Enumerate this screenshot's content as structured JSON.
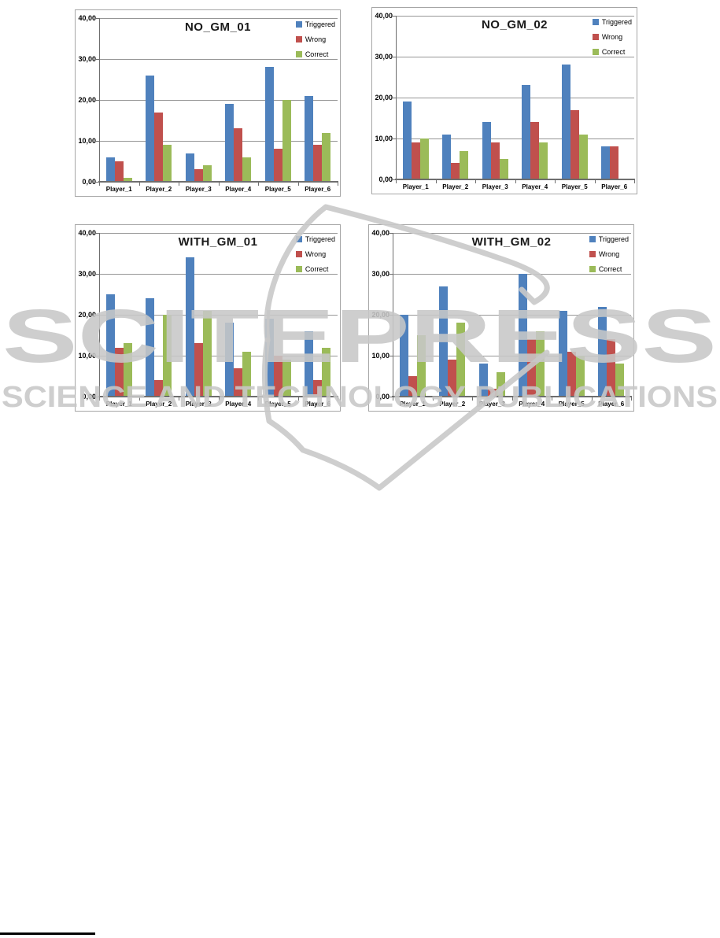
{
  "watermark": {
    "line1": "SCITEPRESS",
    "line2": "SCIENCE AND TECHNOLOGY PUBLICATIONS"
  },
  "colors": {
    "triggered": "#4F81BD",
    "wrong": "#C0504D",
    "correct": "#9BBB59",
    "gridline": "#969696",
    "axis": "#6E6E6E",
    "chart_border": "#A6A6A6",
    "watermark": "#C8C8C8"
  },
  "chart_data": [
    {
      "type": "bar",
      "title": "NO_GM_01",
      "categories": [
        "Player_1",
        "Player_2",
        "Player_3",
        "Player_4",
        "Player_5",
        "Player_6"
      ],
      "series": [
        {
          "name": "Triggered",
          "values": [
            6,
            26,
            7,
            19,
            28,
            21
          ]
        },
        {
          "name": "Wrong",
          "values": [
            5,
            17,
            3,
            13,
            8,
            9
          ]
        },
        {
          "name": "Correct",
          "values": [
            1,
            9,
            4,
            6,
            20,
            12
          ]
        }
      ],
      "ylim": [
        0,
        40
      ],
      "ytick_labels": [
        "0,00",
        "10,00",
        "20,00",
        "30,00",
        "40,00"
      ],
      "grid": true,
      "legend_position": "top-right"
    },
    {
      "type": "bar",
      "title": "NO_GM_02",
      "categories": [
        "Player_1",
        "Player_2",
        "Player_3",
        "Player_4",
        "Player_5",
        "Player_6"
      ],
      "series": [
        {
          "name": "Triggered",
          "values": [
            19,
            11,
            14,
            23,
            28,
            8
          ]
        },
        {
          "name": "Wrong",
          "values": [
            9,
            4,
            9,
            14,
            17,
            8
          ]
        },
        {
          "name": "Correct",
          "values": [
            10,
            7,
            5,
            9,
            11,
            0
          ]
        }
      ],
      "ylim": [
        0,
        40
      ],
      "ytick_labels": [
        "0,00",
        "10,00",
        "20,00",
        "30,00",
        "40,00"
      ],
      "grid": true,
      "legend_position": "top-right"
    },
    {
      "type": "bar",
      "title": "WITH_GM_01",
      "categories": [
        "Player_1",
        "Player_2",
        "Player_3",
        "Player_4",
        "Player_5",
        "Player_6"
      ],
      "series": [
        {
          "name": "Triggered",
          "values": [
            25,
            24,
            34,
            18,
            19,
            16
          ]
        },
        {
          "name": "Wrong",
          "values": [
            12,
            4,
            13,
            7,
            10,
            4
          ]
        },
        {
          "name": "Correct",
          "values": [
            13,
            20,
            21,
            11,
            9,
            12
          ]
        }
      ],
      "ylim": [
        0,
        40
      ],
      "ytick_labels": [
        "0,00",
        "10,00",
        "20,00",
        "30,00",
        "40,00"
      ],
      "grid": true,
      "legend_position": "top-right"
    },
    {
      "type": "bar",
      "title": "WITH_GM_02",
      "categories": [
        "Player_1",
        "Player_2",
        "Player_3",
        "Player_4",
        "Player_5",
        "Player_6"
      ],
      "series": [
        {
          "name": "Triggered",
          "values": [
            20,
            27,
            8,
            30,
            21,
            22
          ]
        },
        {
          "name": "Wrong",
          "values": [
            5,
            9,
            2,
            14,
            11,
            14
          ]
        },
        {
          "name": "Correct",
          "values": [
            15,
            18,
            6,
            16,
            10,
            8
          ]
        }
      ],
      "ylim": [
        0,
        40
      ],
      "ytick_labels": [
        "0,00",
        "10,00",
        "20,00",
        "30,00",
        "40,00"
      ],
      "grid": true,
      "legend_position": "top-right"
    }
  ]
}
